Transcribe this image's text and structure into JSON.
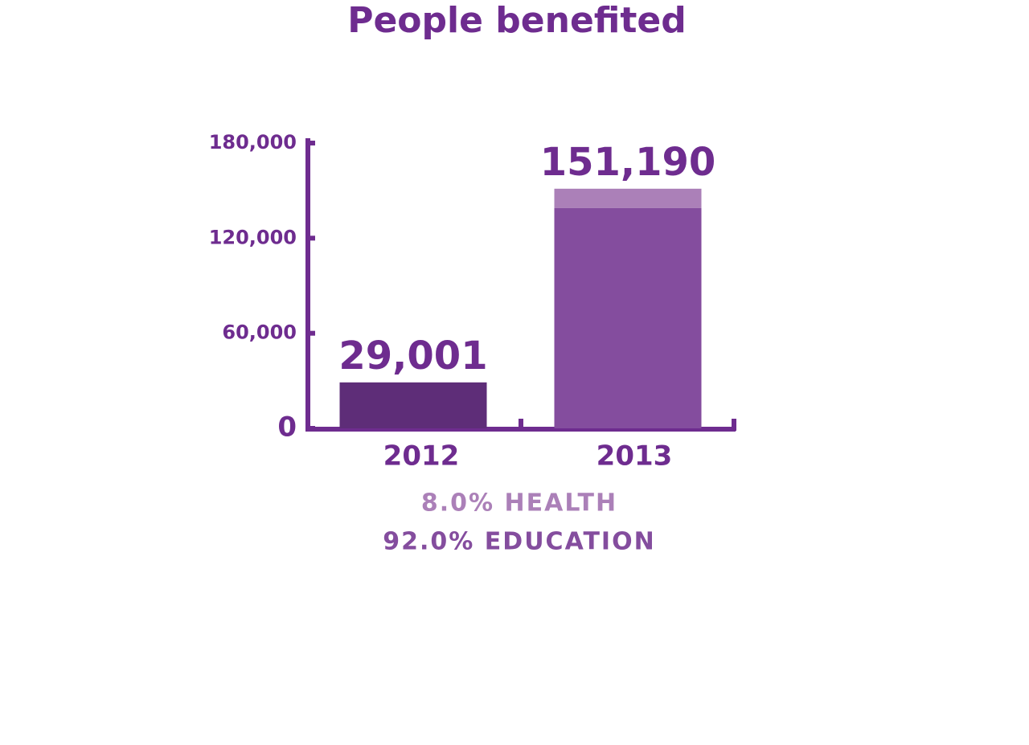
{
  "chart_data": {
    "type": "bar",
    "title": "People benefited",
    "categories": [
      "2012",
      "2013"
    ],
    "values": [
      29001,
      151190
    ],
    "value_labels": [
      "29,001",
      "151,190"
    ],
    "colors": [
      "#5e2d78",
      "#844d9e"
    ],
    "breakdown_of": "2013",
    "breakdown": [
      {
        "label": "8.0% HEALTH",
        "value": 8.0,
        "color": "#ab80b8"
      },
      {
        "label": "92.0% EDUCATION",
        "value": 92.0,
        "color": "#844d9e"
      }
    ],
    "ylim": [
      0,
      180000
    ],
    "yticks": [
      0,
      {
        "value": 60000,
        "label": "60,000"
      },
      {
        "value": 120000,
        "label": "120,000"
      },
      {
        "value": 180000,
        "label": "180,000"
      }
    ],
    "axis_color": "#6e2c8f"
  }
}
